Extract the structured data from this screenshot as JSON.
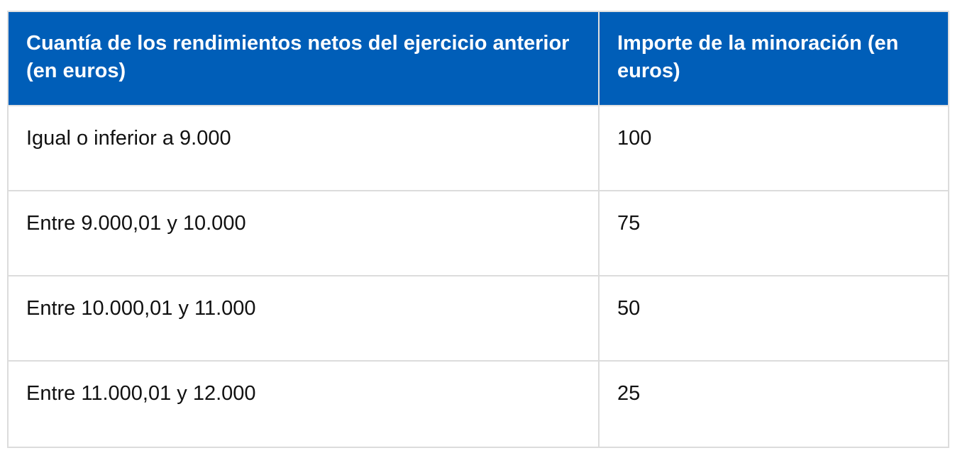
{
  "table": {
    "headers": [
      "Cuantía de los rendimientos netos del ejercicio anterior (en euros)",
      "Importe de la minoración (en euros)"
    ],
    "rows": [
      [
        "Igual o inferior a 9.000",
        "100"
      ],
      [
        "Entre 9.000,01 y 10.000",
        "75"
      ],
      [
        "Entre 10.000,01 y 11.000",
        "50"
      ],
      [
        "Entre 11.000,01 y 12.000",
        "25"
      ]
    ]
  },
  "colors": {
    "header_bg": "#005eb8",
    "header_text": "#ffffff",
    "border": "#dcdcdc"
  }
}
